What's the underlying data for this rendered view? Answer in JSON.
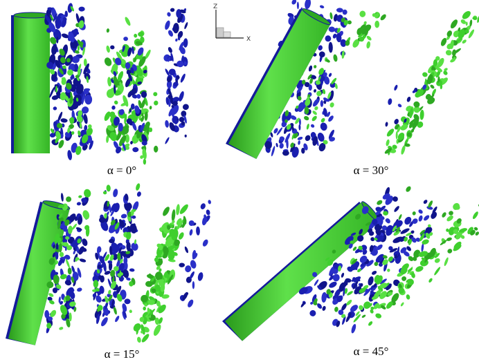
{
  "axes_label": {
    "vertical": "Z",
    "horizontal": "X"
  },
  "panels": [
    {
      "caption": "α = 0°"
    },
    {
      "caption": "α = 30°"
    },
    {
      "caption": "α = 15°"
    },
    {
      "caption": "α = 45°"
    }
  ]
}
